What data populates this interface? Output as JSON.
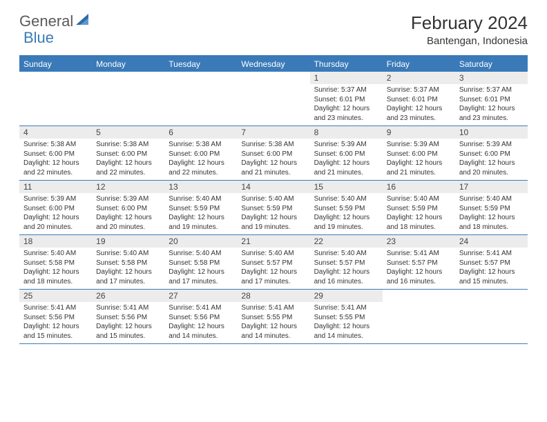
{
  "brand": {
    "part1": "General",
    "part2": "Blue"
  },
  "title": "February 2024",
  "location": "Bantengan, Indonesia",
  "colors": {
    "accent": "#3a7ab8",
    "header_bg": "#3a7ab8",
    "daynum_bg": "#ececec",
    "text": "#333333",
    "logo_gray": "#5a5a5a"
  },
  "day_names": [
    "Sunday",
    "Monday",
    "Tuesday",
    "Wednesday",
    "Thursday",
    "Friday",
    "Saturday"
  ],
  "weeks": [
    [
      {
        "n": "",
        "sr": "",
        "ss": "",
        "dl": ""
      },
      {
        "n": "",
        "sr": "",
        "ss": "",
        "dl": ""
      },
      {
        "n": "",
        "sr": "",
        "ss": "",
        "dl": ""
      },
      {
        "n": "",
        "sr": "",
        "ss": "",
        "dl": ""
      },
      {
        "n": "1",
        "sr": "Sunrise: 5:37 AM",
        "ss": "Sunset: 6:01 PM",
        "dl": "Daylight: 12 hours and 23 minutes."
      },
      {
        "n": "2",
        "sr": "Sunrise: 5:37 AM",
        "ss": "Sunset: 6:01 PM",
        "dl": "Daylight: 12 hours and 23 minutes."
      },
      {
        "n": "3",
        "sr": "Sunrise: 5:37 AM",
        "ss": "Sunset: 6:01 PM",
        "dl": "Daylight: 12 hours and 23 minutes."
      }
    ],
    [
      {
        "n": "4",
        "sr": "Sunrise: 5:38 AM",
        "ss": "Sunset: 6:00 PM",
        "dl": "Daylight: 12 hours and 22 minutes."
      },
      {
        "n": "5",
        "sr": "Sunrise: 5:38 AM",
        "ss": "Sunset: 6:00 PM",
        "dl": "Daylight: 12 hours and 22 minutes."
      },
      {
        "n": "6",
        "sr": "Sunrise: 5:38 AM",
        "ss": "Sunset: 6:00 PM",
        "dl": "Daylight: 12 hours and 22 minutes."
      },
      {
        "n": "7",
        "sr": "Sunrise: 5:38 AM",
        "ss": "Sunset: 6:00 PM",
        "dl": "Daylight: 12 hours and 21 minutes."
      },
      {
        "n": "8",
        "sr": "Sunrise: 5:39 AM",
        "ss": "Sunset: 6:00 PM",
        "dl": "Daylight: 12 hours and 21 minutes."
      },
      {
        "n": "9",
        "sr": "Sunrise: 5:39 AM",
        "ss": "Sunset: 6:00 PM",
        "dl": "Daylight: 12 hours and 21 minutes."
      },
      {
        "n": "10",
        "sr": "Sunrise: 5:39 AM",
        "ss": "Sunset: 6:00 PM",
        "dl": "Daylight: 12 hours and 20 minutes."
      }
    ],
    [
      {
        "n": "11",
        "sr": "Sunrise: 5:39 AM",
        "ss": "Sunset: 6:00 PM",
        "dl": "Daylight: 12 hours and 20 minutes."
      },
      {
        "n": "12",
        "sr": "Sunrise: 5:39 AM",
        "ss": "Sunset: 6:00 PM",
        "dl": "Daylight: 12 hours and 20 minutes."
      },
      {
        "n": "13",
        "sr": "Sunrise: 5:40 AM",
        "ss": "Sunset: 5:59 PM",
        "dl": "Daylight: 12 hours and 19 minutes."
      },
      {
        "n": "14",
        "sr": "Sunrise: 5:40 AM",
        "ss": "Sunset: 5:59 PM",
        "dl": "Daylight: 12 hours and 19 minutes."
      },
      {
        "n": "15",
        "sr": "Sunrise: 5:40 AM",
        "ss": "Sunset: 5:59 PM",
        "dl": "Daylight: 12 hours and 19 minutes."
      },
      {
        "n": "16",
        "sr": "Sunrise: 5:40 AM",
        "ss": "Sunset: 5:59 PM",
        "dl": "Daylight: 12 hours and 18 minutes."
      },
      {
        "n": "17",
        "sr": "Sunrise: 5:40 AM",
        "ss": "Sunset: 5:59 PM",
        "dl": "Daylight: 12 hours and 18 minutes."
      }
    ],
    [
      {
        "n": "18",
        "sr": "Sunrise: 5:40 AM",
        "ss": "Sunset: 5:58 PM",
        "dl": "Daylight: 12 hours and 18 minutes."
      },
      {
        "n": "19",
        "sr": "Sunrise: 5:40 AM",
        "ss": "Sunset: 5:58 PM",
        "dl": "Daylight: 12 hours and 17 minutes."
      },
      {
        "n": "20",
        "sr": "Sunrise: 5:40 AM",
        "ss": "Sunset: 5:58 PM",
        "dl": "Daylight: 12 hours and 17 minutes."
      },
      {
        "n": "21",
        "sr": "Sunrise: 5:40 AM",
        "ss": "Sunset: 5:57 PM",
        "dl": "Daylight: 12 hours and 17 minutes."
      },
      {
        "n": "22",
        "sr": "Sunrise: 5:40 AM",
        "ss": "Sunset: 5:57 PM",
        "dl": "Daylight: 12 hours and 16 minutes."
      },
      {
        "n": "23",
        "sr": "Sunrise: 5:41 AM",
        "ss": "Sunset: 5:57 PM",
        "dl": "Daylight: 12 hours and 16 minutes."
      },
      {
        "n": "24",
        "sr": "Sunrise: 5:41 AM",
        "ss": "Sunset: 5:57 PM",
        "dl": "Daylight: 12 hours and 15 minutes."
      }
    ],
    [
      {
        "n": "25",
        "sr": "Sunrise: 5:41 AM",
        "ss": "Sunset: 5:56 PM",
        "dl": "Daylight: 12 hours and 15 minutes."
      },
      {
        "n": "26",
        "sr": "Sunrise: 5:41 AM",
        "ss": "Sunset: 5:56 PM",
        "dl": "Daylight: 12 hours and 15 minutes."
      },
      {
        "n": "27",
        "sr": "Sunrise: 5:41 AM",
        "ss": "Sunset: 5:56 PM",
        "dl": "Daylight: 12 hours and 14 minutes."
      },
      {
        "n": "28",
        "sr": "Sunrise: 5:41 AM",
        "ss": "Sunset: 5:55 PM",
        "dl": "Daylight: 12 hours and 14 minutes."
      },
      {
        "n": "29",
        "sr": "Sunrise: 5:41 AM",
        "ss": "Sunset: 5:55 PM",
        "dl": "Daylight: 12 hours and 14 minutes."
      },
      {
        "n": "",
        "sr": "",
        "ss": "",
        "dl": ""
      },
      {
        "n": "",
        "sr": "",
        "ss": "",
        "dl": ""
      }
    ]
  ]
}
